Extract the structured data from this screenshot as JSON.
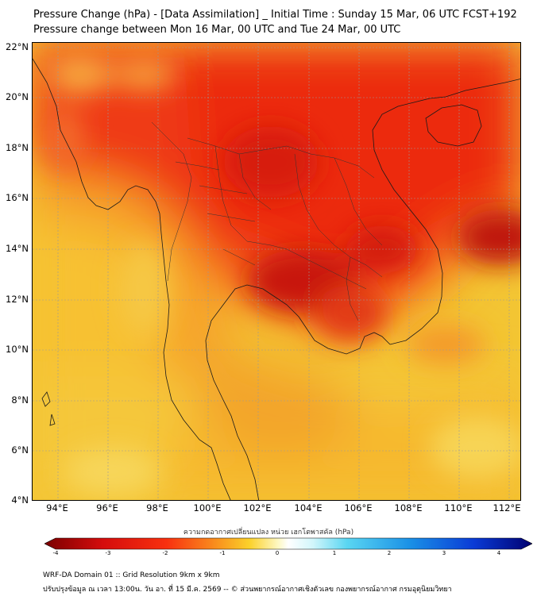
{
  "title_line1": "Pressure Change (hPa) - [Data Assimilation] _ Initial Time : Sunday 15 Mar, 06 UTC FCST+192",
  "title_line2": "Pressure change between Mon 16 Mar, 00 UTC and Tue 24 Mar, 00 UTC",
  "map": {
    "lon_range": [
      93,
      112.5
    ],
    "lat_range": [
      4,
      22.2
    ],
    "lat_labels": [
      "22°N",
      "20°N",
      "18°N",
      "16°N",
      "14°N",
      "12°N",
      "10°N",
      "8°N",
      "6°N",
      "4°N"
    ],
    "lon_labels": [
      "94°E",
      "96°E",
      "98°E",
      "100°E",
      "102°E",
      "104°E",
      "106°E",
      "108°E",
      "110°E",
      "112°E"
    ]
  },
  "colorbar": {
    "title": "ความกดอากาศเปลี่ยนแปลง หน่วย เฮกโตพาสคัล (hPa)",
    "ticks": [
      "-4",
      "-3",
      "-2",
      "-1",
      "0",
      "1",
      "2",
      "3",
      "4"
    ],
    "range": [
      -4,
      4
    ],
    "colors_low": "#8b0000",
    "colors_mid": "#ffffff",
    "colors_high": "#00008b"
  },
  "footer_line1": "WRF-DA Domain 01 :: Grid Resolution 9km x 9km",
  "footer_line2": "ปรับปรุงข้อมูล ณ เวลา 13:00น. วัน อา. ที่ 15 มี.ค. 2569 -- © ส่วนพยากรณ์อากาศเชิงตัวเลข กองพยากรณ์อากาศ กรมอุตุนิยมวิทยา"
}
